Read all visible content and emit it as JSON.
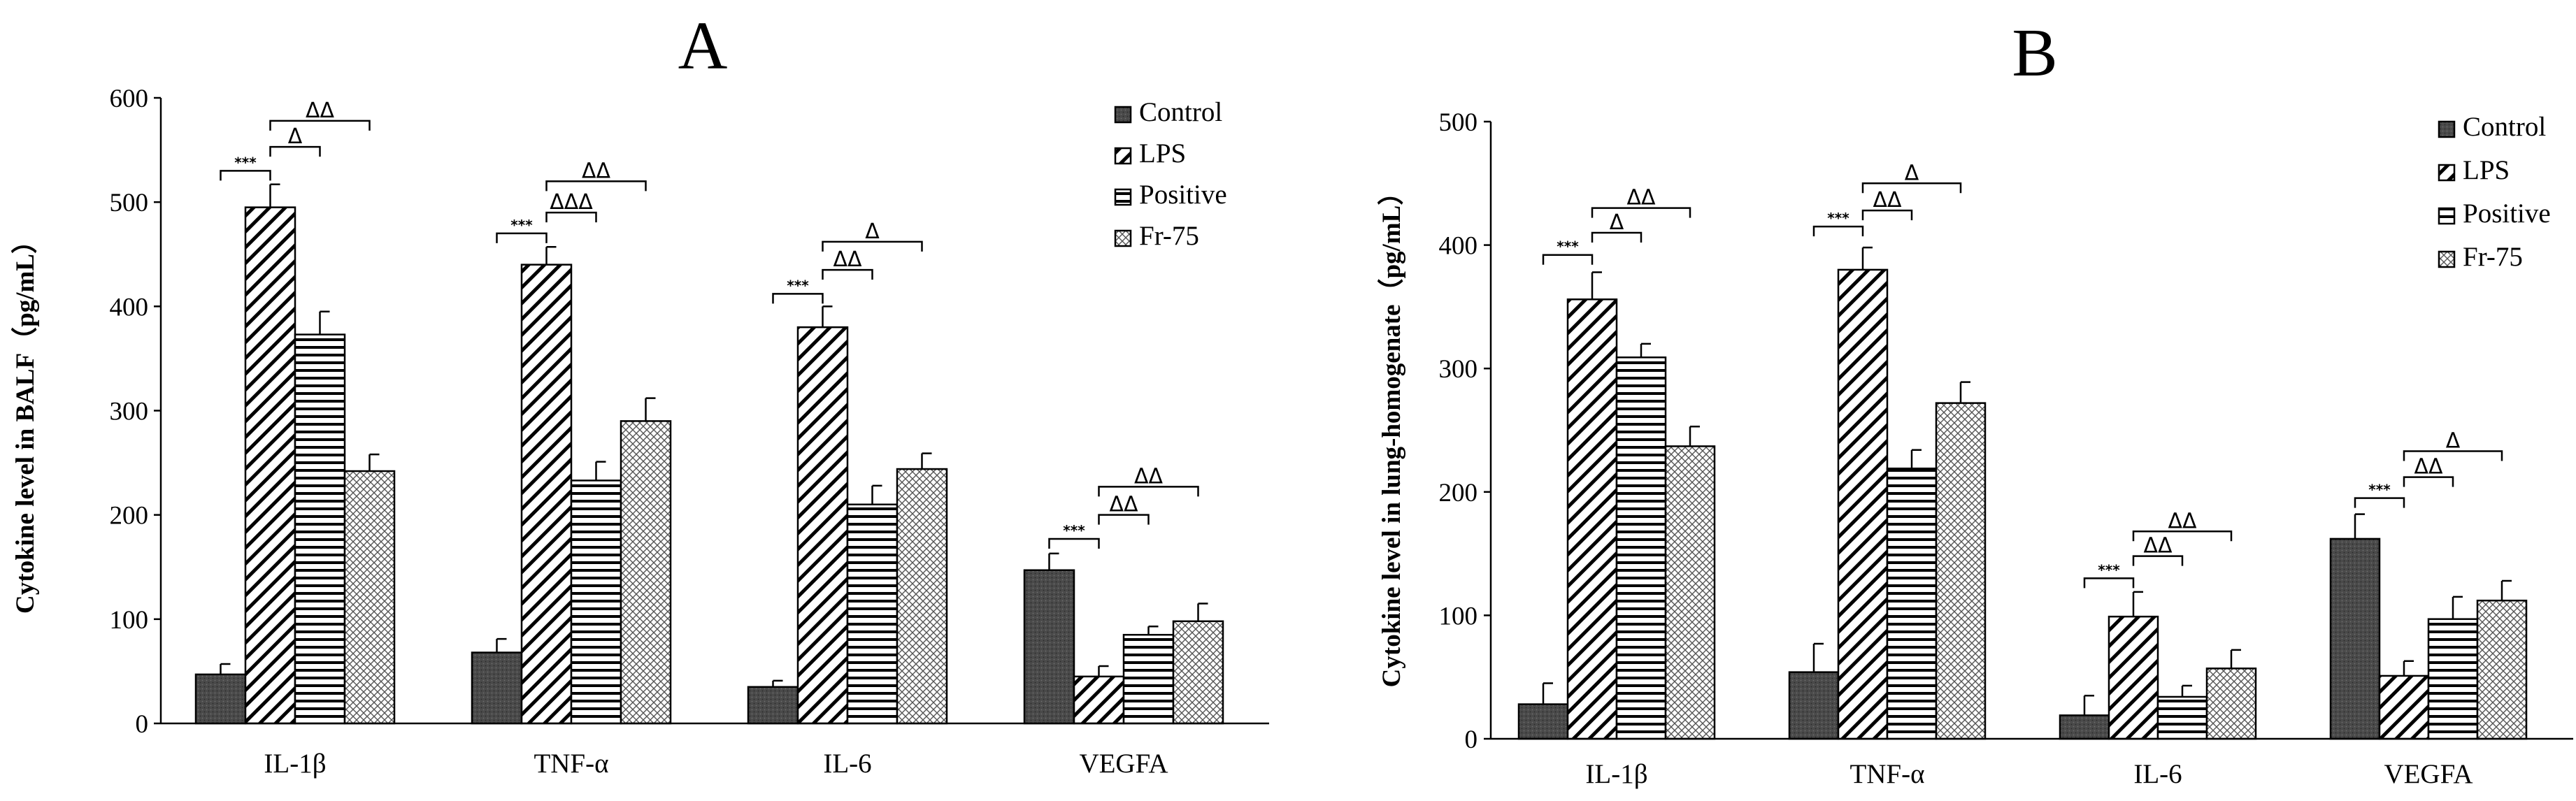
{
  "chart_data": [
    {
      "type": "bar",
      "panel_label": "A",
      "ylabel": "Cytokine level in BALF（pg/mL）",
      "xlabel": "",
      "ylim": [
        0,
        600
      ],
      "yticks": [
        0,
        100,
        200,
        300,
        400,
        500,
        600
      ],
      "categories": [
        "IL-1β",
        "TNF-α",
        "IL-6",
        "VEGFA"
      ],
      "legend_position": "top-right",
      "grid": false,
      "series": [
        {
          "name": "Control",
          "pattern": "dark",
          "values": [
            47,
            68,
            35,
            147
          ],
          "errors": [
            10,
            13,
            6,
            16
          ]
        },
        {
          "name": "LPS",
          "pattern": "diag",
          "values": [
            495,
            440,
            380,
            45
          ],
          "errors": [
            22,
            17,
            20,
            10
          ]
        },
        {
          "name": "Positive",
          "pattern": "horiz",
          "values": [
            373,
            233,
            210,
            85
          ],
          "errors": [
            22,
            18,
            18,
            8
          ]
        },
        {
          "name": "Fr-75",
          "pattern": "check",
          "values": [
            242,
            290,
            244,
            98
          ],
          "errors": [
            16,
            22,
            15,
            17
          ]
        }
      ],
      "annotations": [
        {
          "category": 0,
          "from": 0,
          "to": 1,
          "level": 530,
          "text": "***"
        },
        {
          "category": 0,
          "from": 1,
          "to": 2,
          "level": 553,
          "text": "Δ"
        },
        {
          "category": 0,
          "from": 1,
          "to": 3,
          "level": 578,
          "text": "ΔΔ"
        },
        {
          "category": 1,
          "from": 0,
          "to": 1,
          "level": 470,
          "text": "***"
        },
        {
          "category": 1,
          "from": 1,
          "to": 2,
          "level": 490,
          "text": "ΔΔΔ"
        },
        {
          "category": 1,
          "from": 1,
          "to": 3,
          "level": 520,
          "text": "ΔΔ"
        },
        {
          "category": 2,
          "from": 0,
          "to": 1,
          "level": 412,
          "text": "***"
        },
        {
          "category": 2,
          "from": 1,
          "to": 2,
          "level": 435,
          "text": "ΔΔ"
        },
        {
          "category": 2,
          "from": 1,
          "to": 3,
          "level": 462,
          "text": "Δ"
        },
        {
          "category": 3,
          "from": 0,
          "to": 1,
          "level": 177,
          "text": "***"
        },
        {
          "category": 3,
          "from": 1,
          "to": 2,
          "level": 200,
          "text": "ΔΔ"
        },
        {
          "category": 3,
          "from": 1,
          "to": 3,
          "level": 227,
          "text": "ΔΔ"
        }
      ]
    },
    {
      "type": "bar",
      "panel_label": "B",
      "ylabel": "Cytokine level in lung-homogenate（pg/mL）",
      "xlabel": "",
      "ylim": [
        0,
        500
      ],
      "yticks": [
        0,
        100,
        200,
        300,
        400,
        500
      ],
      "categories": [
        "IL-1β",
        "TNF-α",
        "IL-6",
        "VEGFA"
      ],
      "legend_position": "top-right",
      "grid": false,
      "series": [
        {
          "name": "Control",
          "pattern": "dark",
          "values": [
            28,
            54,
            19,
            162
          ],
          "errors": [
            17,
            23,
            16,
            20
          ]
        },
        {
          "name": "LPS",
          "pattern": "diag",
          "values": [
            356,
            380,
            99,
            51
          ],
          "errors": [
            22,
            18,
            20,
            12
          ]
        },
        {
          "name": "Positive",
          "pattern": "horiz",
          "values": [
            309,
            219,
            34,
            97
          ],
          "errors": [
            11,
            15,
            9,
            18
          ]
        },
        {
          "name": "Fr-75",
          "pattern": "check",
          "values": [
            237,
            272,
            57,
            112
          ],
          "errors": [
            16,
            17,
            15,
            16
          ]
        }
      ],
      "annotations": [
        {
          "category": 0,
          "from": 0,
          "to": 1,
          "level": 392,
          "text": "***"
        },
        {
          "category": 0,
          "from": 1,
          "to": 2,
          "level": 410,
          "text": "Δ"
        },
        {
          "category": 0,
          "from": 1,
          "to": 3,
          "level": 430,
          "text": "ΔΔ"
        },
        {
          "category": 1,
          "from": 0,
          "to": 1,
          "level": 415,
          "text": "***"
        },
        {
          "category": 1,
          "from": 1,
          "to": 2,
          "level": 428,
          "text": "ΔΔ"
        },
        {
          "category": 1,
          "from": 1,
          "to": 3,
          "level": 450,
          "text": "Δ"
        },
        {
          "category": 2,
          "from": 0,
          "to": 1,
          "level": 130,
          "text": "***"
        },
        {
          "category": 2,
          "from": 1,
          "to": 2,
          "level": 148,
          "text": "ΔΔ"
        },
        {
          "category": 2,
          "from": 1,
          "to": 3,
          "level": 168,
          "text": "ΔΔ"
        },
        {
          "category": 3,
          "from": 0,
          "to": 1,
          "level": 195,
          "text": "***"
        },
        {
          "category": 3,
          "from": 1,
          "to": 2,
          "level": 212,
          "text": "ΔΔ"
        },
        {
          "category": 3,
          "from": 1,
          "to": 3,
          "level": 233,
          "text": "Δ"
        }
      ]
    }
  ]
}
